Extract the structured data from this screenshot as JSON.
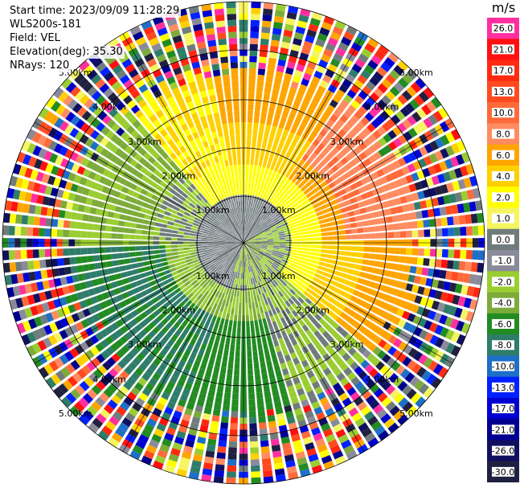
{
  "header": {
    "start_time": "Start time: 2023/09/09 11:28:29",
    "instrument": "WLS200s-181",
    "field": "Field: VEL",
    "elevation": "Elevation(deg): 35.30",
    "nrays": "NRays: 120"
  },
  "colorbar": {
    "unit": "m/s",
    "ticks": [
      "26.0",
      "21.0",
      "17.0",
      "13.0",
      "10.0",
      "8.0",
      "6.0",
      "4.0",
      "2.0",
      "1.0",
      "0.0",
      "-1.0",
      "-2.0",
      "-4.0",
      "-6.0",
      "-8.0",
      "-10.0",
      "-13.0",
      "-17.0",
      "-21.0",
      "-26.0",
      "-30.0"
    ],
    "colors": [
      "#ff2fa0",
      "#ff1010",
      "#ff2a10",
      "#ff4a20",
      "#ff6a3a",
      "#ff8c60",
      "#ffa500",
      "#ffd000",
      "#ffff00",
      "#f5f560",
      "#707c7c",
      "#8a8a9a",
      "#9acd32",
      "#7cab3a",
      "#228b22",
      "#2e7d6b",
      "#1e6fc8",
      "#0020ff",
      "#0000d0",
      "#000090",
      "#101060",
      "#202040"
    ]
  },
  "chart_data": {
    "type": "heatmap",
    "title": "",
    "field": "VEL",
    "units": "m/s",
    "range_rings": [
      "1.00km",
      "2.00km",
      "3.00km",
      "4.00km",
      "5.00km"
    ],
    "n_rays": 120,
    "elevation_deg": 35.3,
    "value_range": [
      -30.0,
      26.0
    ]
  }
}
